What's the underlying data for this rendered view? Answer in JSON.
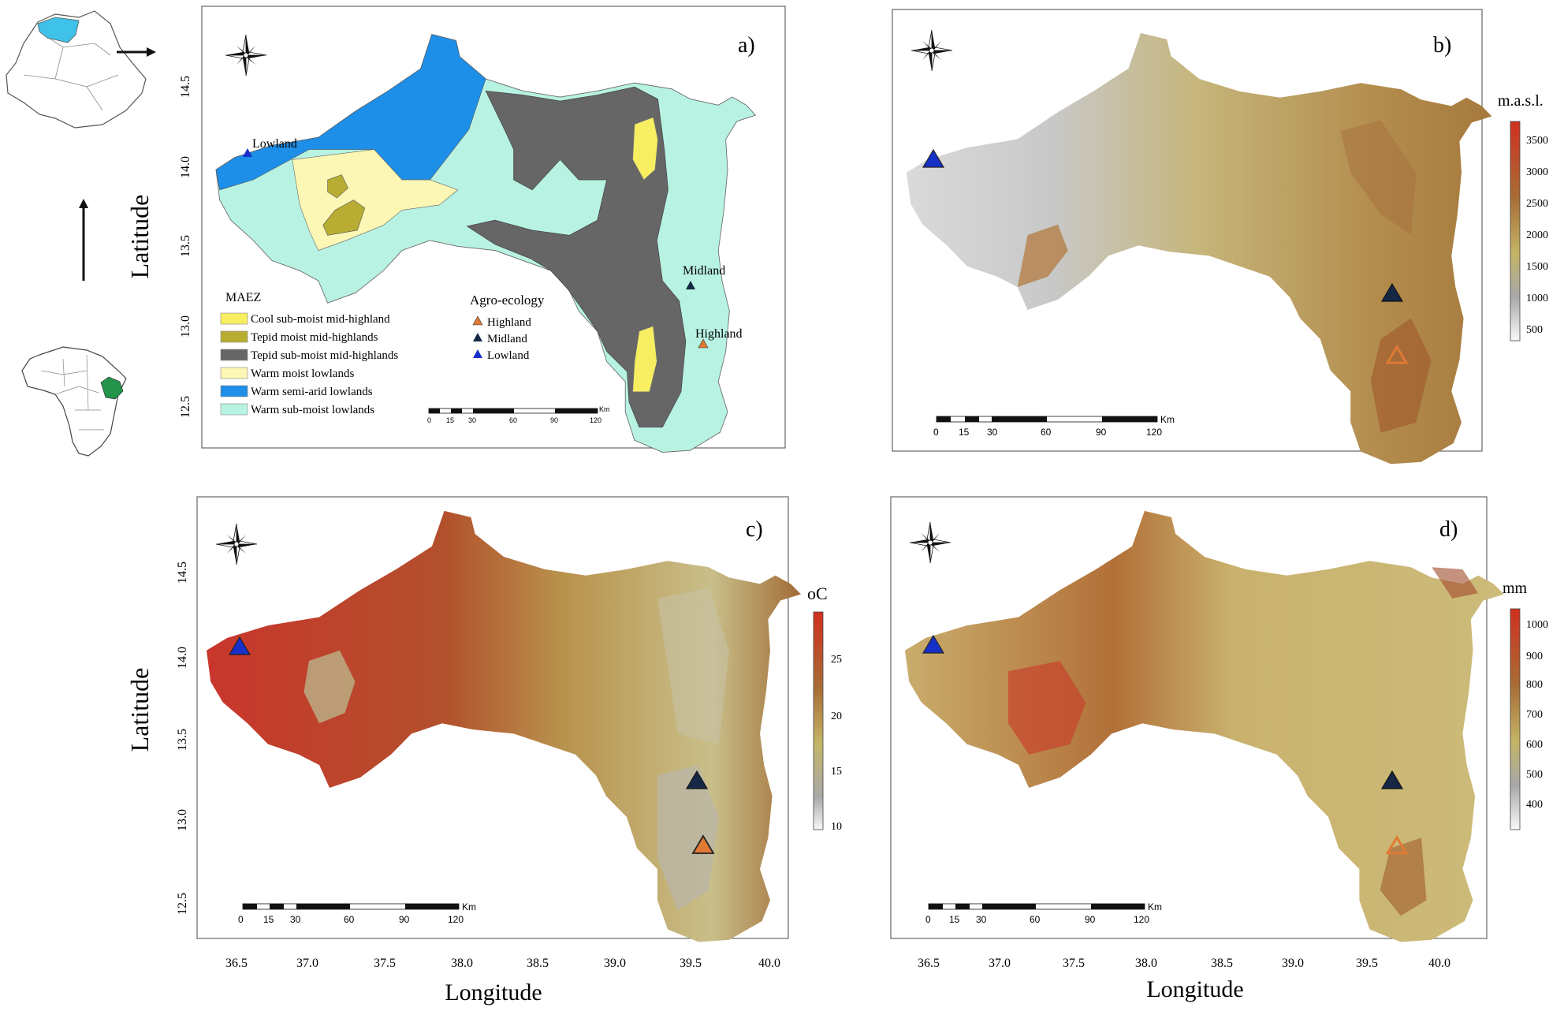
{
  "colors": {
    "lowland_marker": "#1630c8",
    "midland_marker": "#152845",
    "highland_marker": "#e07a35",
    "warm_semi_arid": "#1e8fe8",
    "warm_sub_moist": "#b8f2e2",
    "warm_moist": "#fcf7b5",
    "tepid_sub_moist": "#666666",
    "tepid_moist": "#b8ad32",
    "cool_sub_moist": "#f8ee62"
  },
  "locator": {
    "arrows": [
      "right-arrow",
      "up-arrow"
    ]
  },
  "panels": {
    "a": {
      "label": "a)",
      "site_labels": {
        "lowland": "Lowland",
        "midland": "Midland",
        "highland": "Highland"
      },
      "legend_maez": {
        "title": "MAEZ",
        "items": [
          {
            "label": "Cool sub-moist mid-highland",
            "color": "#f8ee62"
          },
          {
            "label": "Tepid moist mid-highlands",
            "color": "#b8ad32"
          },
          {
            "label": "Tepid sub-moist mid-highlands",
            "color": "#666666"
          },
          {
            "label": "Warm moist lowlands",
            "color": "#fcf7b5"
          },
          {
            "label": "Warm semi-arid lowlands",
            "color": "#1e8fe8"
          },
          {
            "label": "Warm sub-moist lowlands",
            "color": "#b8f2e2"
          }
        ]
      },
      "legend_agro": {
        "title": "Agro-ecology",
        "items": [
          {
            "label": "Highland",
            "marker": "highland"
          },
          {
            "label": "Midland",
            "marker": "midland"
          },
          {
            "label": "Lowland",
            "marker": "lowland"
          }
        ]
      },
      "scalebar": {
        "ticks": [
          "0",
          "15",
          "30",
          "60",
          "90",
          "120"
        ],
        "unit": "Km"
      }
    },
    "b": {
      "label": "b)",
      "legend_title": "m.a.s.l.",
      "ticks": [
        "3500",
        "3000",
        "2500",
        "2000",
        "1500",
        "1000",
        "500"
      ],
      "scalebar": {
        "ticks": [
          "0",
          "15",
          "30",
          "60",
          "90",
          "120"
        ],
        "unit": "Km"
      }
    },
    "c": {
      "label": "c)",
      "legend_title": "oC",
      "ticks": [
        "25",
        "20",
        "15",
        "10"
      ],
      "scalebar": {
        "ticks": [
          "0",
          "15",
          "30",
          "60",
          "90",
          "120"
        ],
        "unit": "Km"
      }
    },
    "d": {
      "label": "d)",
      "legend_title": "mm",
      "ticks": [
        "1000",
        "900",
        "800",
        "700",
        "600",
        "500",
        "400"
      ],
      "scalebar": {
        "ticks": [
          "0",
          "15",
          "30",
          "60",
          "90",
          "120"
        ],
        "unit": "Km"
      }
    }
  },
  "axes": {
    "ylabel": "Latitude",
    "xlabel": "Longitude",
    "lat_ticks": [
      "14.5",
      "14.0",
      "13.5",
      "13.0",
      "12.5"
    ],
    "lon_ticks": [
      "36.5",
      "37.0",
      "37.5",
      "38.0",
      "38.5",
      "39.0",
      "39.5",
      "40.0"
    ]
  }
}
